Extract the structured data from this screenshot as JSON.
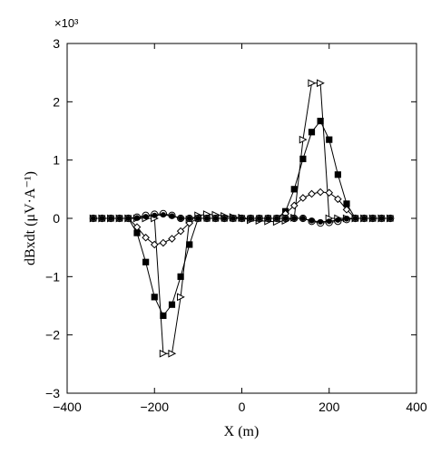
{
  "chart_data": {
    "type": "line",
    "title": "",
    "xlabel": "X (m)",
    "ylabel": "dBxdt (μV·A⁻¹)",
    "y_multiplier_label": "×10³",
    "xlim": [
      -400,
      400
    ],
    "ylim": [
      -3,
      3
    ],
    "xticks": [
      -400,
      -200,
      0,
      200,
      400
    ],
    "yticks": [
      -3,
      -2,
      -1,
      0,
      1,
      2,
      3
    ],
    "xtick_labels": [
      "−400",
      "−200",
      "0",
      "200",
      "400"
    ],
    "ytick_labels": [
      "−3",
      "−2",
      "−1",
      "0",
      "1",
      "2",
      "3"
    ],
    "grid": false,
    "legend": "none",
    "series": [
      {
        "marker": "triangle-right-open",
        "x": [
          -340,
          -320,
          -300,
          -280,
          -260,
          -240,
          -220,
          -200,
          -180,
          -160,
          -140,
          -120,
          -100,
          -80,
          -60,
          -40,
          -20,
          0,
          20,
          40,
          60,
          80,
          100,
          120,
          140,
          160,
          180,
          200,
          220,
          240,
          260,
          280,
          300,
          320,
          340
        ],
        "y": [
          0,
          0,
          0,
          0,
          0,
          0,
          0,
          0,
          -2.32,
          -2.32,
          -1.35,
          -0.02,
          0.05,
          0.07,
          0.06,
          0.04,
          0.02,
          0.01,
          -0.03,
          -0.04,
          -0.05,
          -0.06,
          -0.04,
          0.01,
          1.35,
          2.32,
          2.32,
          0,
          0,
          0,
          0,
          0,
          0,
          0,
          0
        ]
      },
      {
        "marker": "square-filled",
        "x": [
          -340,
          -320,
          -300,
          -280,
          -260,
          -240,
          -220,
          -200,
          -180,
          -160,
          -140,
          -120,
          -100,
          -80,
          -60,
          -40,
          -20,
          0,
          20,
          40,
          60,
          80,
          100,
          120,
          140,
          160,
          180,
          200,
          220,
          240,
          260,
          280,
          300,
          320,
          340
        ],
        "y": [
          0,
          0,
          0,
          0,
          0,
          -0.25,
          -0.75,
          -1.35,
          -1.67,
          -1.48,
          -1.0,
          -0.45,
          0,
          0,
          0,
          0,
          0,
          0,
          0,
          0,
          0,
          0,
          0.12,
          0.5,
          1.02,
          1.48,
          1.67,
          1.35,
          0.75,
          0.25,
          0,
          0,
          0,
          0,
          0
        ]
      },
      {
        "marker": "diamond-open",
        "x": [
          -340,
          -320,
          -300,
          -280,
          -260,
          -240,
          -220,
          -200,
          -180,
          -160,
          -140,
          -120,
          -100,
          -80,
          -60,
          -40,
          -20,
          0,
          20,
          40,
          60,
          80,
          100,
          120,
          140,
          160,
          180,
          200,
          220,
          240,
          260,
          280,
          300,
          320,
          340
        ],
        "y": [
          0,
          0,
          0,
          0,
          0,
          -0.15,
          -0.33,
          -0.45,
          -0.42,
          -0.35,
          -0.22,
          -0.08,
          0,
          0,
          0,
          0,
          0,
          0,
          0,
          0,
          0,
          0,
          0.08,
          0.22,
          0.35,
          0.42,
          0.45,
          0.44,
          0.33,
          0.15,
          0,
          0,
          0,
          0,
          0
        ]
      },
      {
        "marker": "circle-open",
        "x": [
          -340,
          -320,
          -300,
          -280,
          -260,
          -240,
          -220,
          -200,
          -180,
          -160,
          -140,
          -120,
          -100,
          -80,
          -60,
          -40,
          -20,
          0,
          20,
          40,
          60,
          80,
          100,
          120,
          140,
          160,
          180,
          200,
          220,
          240,
          260,
          280,
          300,
          320,
          340
        ],
        "y": [
          0,
          0,
          0,
          0,
          0,
          0.02,
          0.05,
          0.07,
          0.08,
          0.05,
          0,
          0,
          0,
          0,
          0,
          0,
          0,
          0,
          0,
          0,
          0,
          0,
          0,
          0,
          0,
          -0.05,
          -0.08,
          -0.07,
          -0.05,
          -0.02,
          0,
          0,
          0,
          0,
          0
        ]
      },
      {
        "marker": "circle-filled",
        "x": [
          -340,
          -320,
          -300,
          -280,
          -260,
          -240,
          -220,
          -200,
          -180,
          -160,
          -140,
          -120,
          -100,
          -80,
          -60,
          -40,
          -20,
          0,
          20,
          40,
          60,
          80,
          100,
          120,
          140,
          160,
          180,
          200,
          220,
          240,
          260,
          280,
          300,
          320,
          340
        ],
        "y": [
          0,
          0,
          0,
          0,
          0,
          0.01,
          0.03,
          0.05,
          0.06,
          0.04,
          0,
          0,
          0,
          0,
          0,
          0,
          0,
          0,
          0,
          0,
          0,
          0,
          0,
          0,
          0,
          -0.04,
          -0.06,
          -0.05,
          -0.03,
          -0.01,
          0,
          0,
          0,
          0,
          0
        ]
      }
    ]
  }
}
